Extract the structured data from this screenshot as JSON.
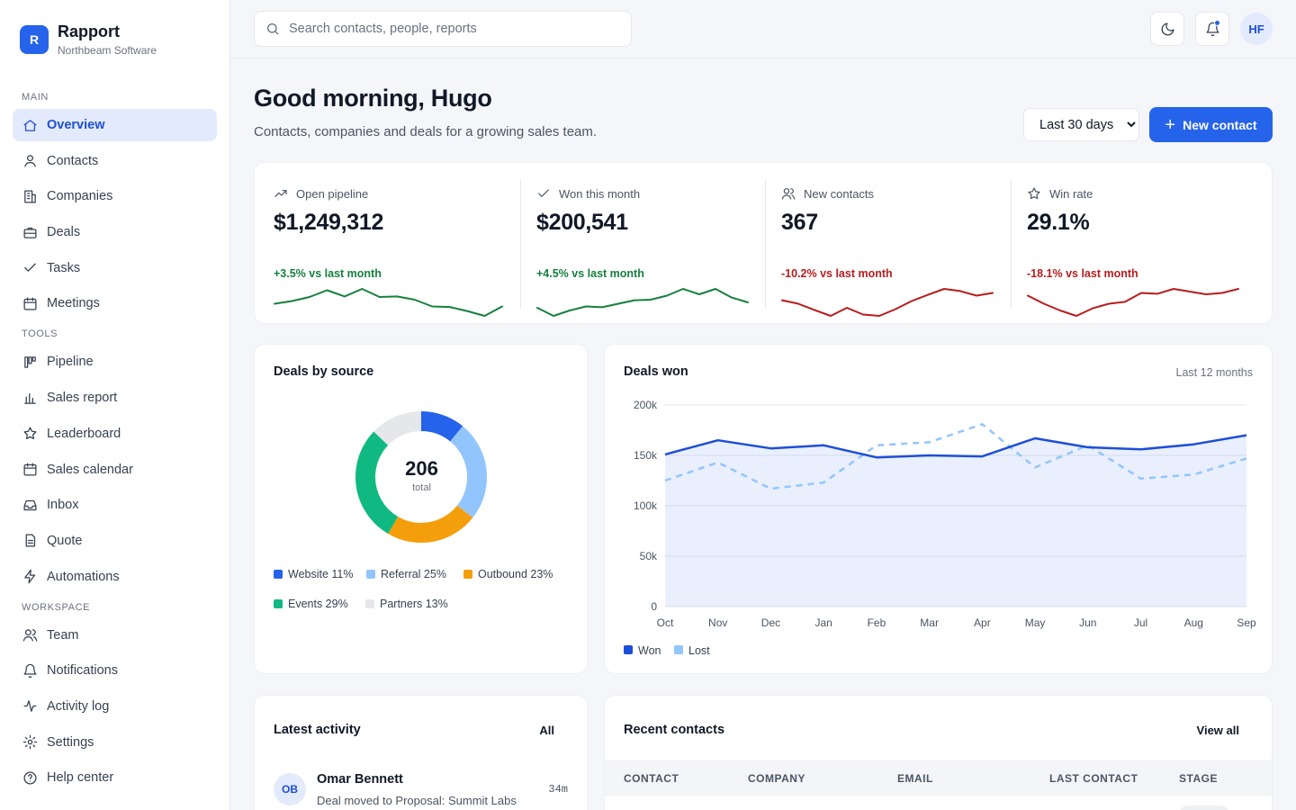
{
  "brand": {
    "logo_letter": "R",
    "name": "Rapport",
    "org": "Northbeam Software"
  },
  "nav": {
    "sections": [
      {
        "label": "MAIN",
        "items": [
          {
            "label": "Overview",
            "icon": "home-icon",
            "active": true
          },
          {
            "label": "Contacts",
            "icon": "user-icon"
          },
          {
            "label": "Companies",
            "icon": "building-icon"
          },
          {
            "label": "Deals",
            "icon": "briefcase-icon"
          },
          {
            "label": "Tasks",
            "icon": "check-icon"
          },
          {
            "label": "Meetings",
            "icon": "calendar-icon"
          }
        ]
      },
      {
        "label": "TOOLS",
        "items": [
          {
            "label": "Pipeline",
            "icon": "kanban-icon"
          },
          {
            "label": "Sales report",
            "icon": "bar-chart-icon"
          },
          {
            "label": "Leaderboard",
            "icon": "star-icon"
          },
          {
            "label": "Sales calendar",
            "icon": "calendar-icon"
          },
          {
            "label": "Inbox",
            "icon": "inbox-icon"
          },
          {
            "label": "Quote",
            "icon": "file-icon"
          },
          {
            "label": "Automations",
            "icon": "bolt-icon"
          }
        ]
      },
      {
        "label": "WORKSPACE",
        "items": [
          {
            "label": "Team",
            "icon": "users-icon"
          },
          {
            "label": "Notifications",
            "icon": "bell-icon"
          },
          {
            "label": "Activity log",
            "icon": "activity-icon"
          },
          {
            "label": "Settings",
            "icon": "gear-icon"
          },
          {
            "label": "Help center",
            "icon": "help-icon"
          }
        ]
      }
    ]
  },
  "topbar": {
    "search_placeholder": "Search contacts, people, reports",
    "user_initials": "HF"
  },
  "header": {
    "greeting": "Good morning, Hugo",
    "subtitle": "Contacts, companies and deals for a growing sales team.",
    "range_options": [
      "Last 30 days"
    ],
    "new_contact_label": "New contact"
  },
  "kpis": [
    {
      "label": "Open pipeline",
      "icon": "trend-up-icon",
      "value": "$1,249,312",
      "delta": "+3.5% vs last month",
      "positive": true,
      "color": "#15803d",
      "spark": [
        0.45,
        0.55,
        0.7,
        0.95,
        0.72,
        1.0,
        0.7,
        0.72,
        0.6,
        0.35,
        0.33,
        0.18,
        0.0,
        0.35
      ]
    },
    {
      "label": "Won this month",
      "icon": "check-icon",
      "value": "$200,541",
      "delta": "+4.5% vs last month",
      "positive": true,
      "color": "#15803d",
      "spark": [
        0.3,
        0.0,
        0.2,
        0.35,
        0.32,
        0.45,
        0.58,
        0.6,
        0.75,
        1.0,
        0.8,
        1.0,
        0.68,
        0.5
      ]
    },
    {
      "label": "New contacts",
      "icon": "users-icon",
      "value": "367",
      "delta": "-10.2% vs last month",
      "positive": false,
      "color": "#b91c1c",
      "spark": [
        0.58,
        0.45,
        0.22,
        0.0,
        0.3,
        0.05,
        0.0,
        0.25,
        0.55,
        0.78,
        1.0,
        0.92,
        0.75,
        0.85
      ]
    },
    {
      "label": "Win rate",
      "icon": "star-icon",
      "value": "29.1%",
      "delta": "-18.1% vs last month",
      "positive": false,
      "color": "#b91c1c",
      "spark": [
        0.75,
        0.45,
        0.2,
        0.0,
        0.28,
        0.45,
        0.52,
        0.85,
        0.82,
        1.0,
        0.9,
        0.8,
        0.85,
        1.0
      ]
    }
  ],
  "donut": {
    "title": "Deals by source",
    "total": "206",
    "total_label": "total",
    "chart_data": {
      "type": "pie",
      "categories": [
        "Website",
        "Referral",
        "Outbound",
        "Events",
        "Partners"
      ],
      "values": [
        11,
        25,
        23,
        29,
        13
      ],
      "colors": [
        "#2563eb",
        "#93c5fd",
        "#f59e0b",
        "#10b981",
        "#e5e7eb"
      ],
      "legend": [
        "Website 11%",
        "Referral 25%",
        "Outbound 23%",
        "Events 29%",
        "Partners 13%"
      ]
    }
  },
  "deals_won": {
    "title": "Deals won",
    "range": "Last 12 months",
    "chart_data": {
      "type": "line",
      "categories": [
        "Oct",
        "Nov",
        "Dec",
        "Jan",
        "Feb",
        "Mar",
        "Apr",
        "May",
        "Jun",
        "Jul",
        "Aug",
        "Sep"
      ],
      "ylim": [
        0,
        200000
      ],
      "yticks": [
        "0",
        "50k",
        "100k",
        "150k",
        "200k"
      ],
      "series": [
        {
          "name": "Won",
          "color": "#1d4ed8",
          "values": [
            151000,
            165000,
            157000,
            160000,
            148000,
            150000,
            149000,
            167000,
            158000,
            156000,
            161000,
            170000
          ]
        },
        {
          "name": "Lost",
          "color": "#93c5fd",
          "values": [
            125000,
            143000,
            117000,
            123000,
            160000,
            163000,
            181000,
            138000,
            160000,
            127000,
            131000,
            147000
          ]
        }
      ]
    }
  },
  "activity": {
    "title": "Latest activity",
    "filter": "All",
    "items": [
      {
        "initials": "OB",
        "name": "Omar Bennett",
        "desc": "Deal moved to Proposal: Summit Labs",
        "time": "34m"
      }
    ]
  },
  "contacts": {
    "title": "Recent contacts",
    "view_all": "View all",
    "columns": [
      "CONTACT",
      "COMPANY",
      "EMAIL",
      "LAST CONTACT",
      "STAGE"
    ]
  }
}
